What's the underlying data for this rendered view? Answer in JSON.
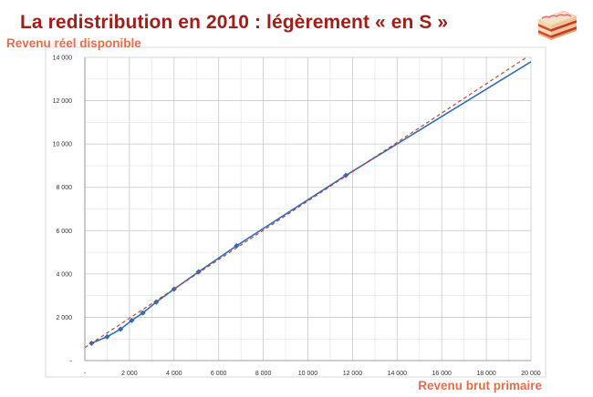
{
  "slide": {
    "title": "La redistribution en 2010 : légèrement « en S »"
  },
  "chart_data": {
    "type": "line",
    "ylabel": "Revenu réel disponible",
    "xlabel": "Revenu brut primaire",
    "xlim": [
      0,
      20000
    ],
    "ylim": [
      0,
      14000
    ],
    "x_ticks": [
      0,
      2000,
      4000,
      6000,
      8000,
      10000,
      12000,
      14000,
      16000,
      18000,
      20000
    ],
    "x_tick_labels": [
      "-",
      "2 000",
      "4 000",
      "6 000",
      "8 000",
      "10 000",
      "12 000",
      "14 000",
      "16 000",
      "18 000",
      "20 000"
    ],
    "y_ticks": [
      0,
      2000,
      4000,
      6000,
      8000,
      10000,
      12000,
      14000
    ],
    "y_tick_labels": [
      "-",
      "2 000",
      "4 000",
      "6 000",
      "8 000",
      "10 000",
      "12 000",
      "14 000"
    ],
    "grid": true,
    "series": [
      {
        "style": "solid-line-with-markers",
        "color": "#2e6ebd",
        "x": [
          300,
          1000,
          1600,
          2100,
          2600,
          3200,
          4000,
          5100,
          6800,
          11700,
          20000
        ],
        "y": [
          800,
          1100,
          1450,
          1850,
          2200,
          2700,
          3300,
          4100,
          5300,
          8550,
          13800
        ],
        "markers": [
          true,
          true,
          true,
          true,
          true,
          true,
          true,
          true,
          true,
          true,
          false
        ]
      },
      {
        "style": "dashed",
        "color": "#c0392b",
        "x": [
          0,
          19800
        ],
        "y": [
          600,
          14000
        ]
      }
    ]
  }
}
